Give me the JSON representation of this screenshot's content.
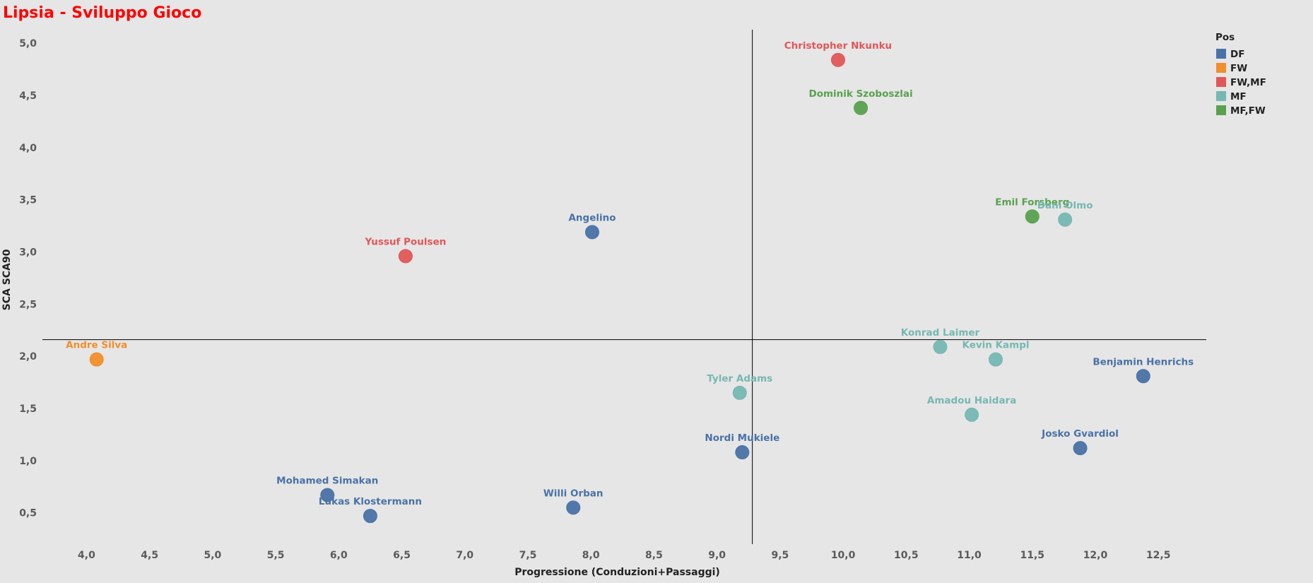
{
  "colors": {
    "background": "#e6e6e6",
    "title": "#ff0000",
    "DF": "#4a72a6",
    "FW": "#f28e2b",
    "FW,MF": "#e15759",
    "MF": "#76b7b2",
    "MF,FW": "#59a14f"
  },
  "chart_data": {
    "type": "scatter",
    "title": "Lipsia - Sviluppo Gioco",
    "xlabel": "Progressione (Conduzioni+Passaggi)",
    "ylabel": "SCA SCA90",
    "xlim": [
      3.65,
      12.88
    ],
    "ylim": [
      0.2,
      5.13
    ],
    "x_ticks": [
      "4,0",
      "4,5",
      "5,0",
      "5,5",
      "6,0",
      "6,5",
      "7,0",
      "7,5",
      "8,0",
      "8,5",
      "9,0",
      "9,5",
      "10,0",
      "10,5",
      "11,0",
      "11,5",
      "12,0",
      "12,5"
    ],
    "x_tick_values": [
      4.0,
      4.5,
      5.0,
      5.5,
      6.0,
      6.5,
      7.0,
      7.5,
      8.0,
      8.5,
      9.0,
      9.5,
      10.0,
      10.5,
      11.0,
      11.5,
      12.0,
      12.5
    ],
    "y_ticks": [
      "0,5",
      "1,0",
      "1,5",
      "2,0",
      "2,5",
      "3,0",
      "3,5",
      "4,0",
      "4,5",
      "5,0"
    ],
    "y_tick_values": [
      0.5,
      1.0,
      1.5,
      2.0,
      2.5,
      3.0,
      3.5,
      4.0,
      4.5,
      5.0
    ],
    "reference_lines": {
      "x": 9.28,
      "y": 2.16
    },
    "grid": false,
    "legend": {
      "title": "Pos",
      "position": "top-right",
      "entries": [
        "DF",
        "FW",
        "FW,MF",
        "MF",
        "MF,FW"
      ]
    },
    "points": [
      {
        "name": "Christopher Nkunku",
        "pos": "FW,MF",
        "x": 9.96,
        "y": 4.84
      },
      {
        "name": "Dominik Szoboszlai",
        "pos": "MF,FW",
        "x": 10.14,
        "y": 4.38
      },
      {
        "name": "Emil Forsberg",
        "pos": "MF,FW",
        "x": 11.5,
        "y": 3.34
      },
      {
        "name": "Dani Olmo",
        "pos": "MF",
        "x": 11.76,
        "y": 3.31
      },
      {
        "name": "Angelino",
        "pos": "DF",
        "x": 8.01,
        "y": 3.19
      },
      {
        "name": "Yussuf Poulsen",
        "pos": "FW,MF",
        "x": 6.53,
        "y": 2.96
      },
      {
        "name": "Andre Silva",
        "pos": "FW",
        "x": 4.08,
        "y": 1.97
      },
      {
        "name": "Konrad Laimer",
        "pos": "MF",
        "x": 10.77,
        "y": 2.09
      },
      {
        "name": "Kevin Kampl",
        "pos": "MF",
        "x": 11.21,
        "y": 1.97
      },
      {
        "name": "Benjamin Henrichs",
        "pos": "DF",
        "x": 12.38,
        "y": 1.81
      },
      {
        "name": "Tyler Adams",
        "pos": "MF",
        "x": 9.18,
        "y": 1.65
      },
      {
        "name": "Amadou Haidara",
        "pos": "MF",
        "x": 11.02,
        "y": 1.44
      },
      {
        "name": "Nordi Mukiele",
        "pos": "DF",
        "x": 9.2,
        "y": 1.08
      },
      {
        "name": "Josko Gvardiol",
        "pos": "DF",
        "x": 11.88,
        "y": 1.12
      },
      {
        "name": "Mohamed Simakan",
        "pos": "DF",
        "x": 5.91,
        "y": 0.67
      },
      {
        "name": "Lukas Klostermann",
        "pos": "DF",
        "x": 6.25,
        "y": 0.47
      },
      {
        "name": "Willi Orban",
        "pos": "DF",
        "x": 7.86,
        "y": 0.55
      }
    ]
  }
}
